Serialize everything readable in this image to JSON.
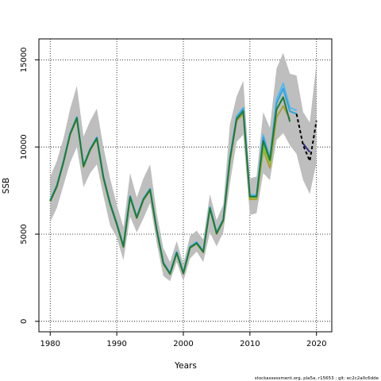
{
  "chart_data": {
    "type": "line",
    "title": "",
    "xlabel": "Years",
    "ylabel": "SSB",
    "xlim": [
      1978.3,
      2022.3
    ],
    "ylim": [
      -600,
      16200
    ],
    "x_ticks": [
      1980,
      1990,
      2000,
      2010,
      2020
    ],
    "y_ticks": [
      0,
      5000,
      10000,
      15000
    ],
    "grid": "dotted",
    "legend": "none",
    "footnote": "stockassessment.org, pla5a, r15653 ; git: ec2c2a0c6dde",
    "band": {
      "color": "#bebebe",
      "x": [
        1980,
        1981,
        1982,
        1983,
        1984,
        1985,
        1986,
        1987,
        1988,
        1989,
        1990,
        1991,
        1992,
        1993,
        1994,
        1995,
        1996,
        1997,
        1998,
        1999,
        2000,
        2001,
        2002,
        2003,
        2004,
        2005,
        2006,
        2007,
        2008,
        2009,
        2010,
        2011,
        2012,
        2013,
        2014,
        2015,
        2016,
        2017,
        2018,
        2019,
        2020
      ],
      "upper": [
        8300,
        9200,
        10500,
        12200,
        13500,
        10600,
        11500,
        12200,
        10000,
        8200,
        6700,
        5400,
        8500,
        7100,
        8200,
        9000,
        6200,
        4200,
        3400,
        4600,
        3300,
        4900,
        5200,
        4700,
        7300,
        5800,
        6700,
        11300,
        12900,
        13800,
        8200,
        8300,
        12000,
        11100,
        14500,
        15400,
        14200,
        14100,
        12000,
        11400,
        14800
      ],
      "lower": [
        5700,
        6500,
        7800,
        9100,
        10000,
        7700,
        8500,
        9000,
        7200,
        5500,
        4800,
        3500,
        6000,
        5100,
        5900,
        6800,
        4500,
        2600,
        2300,
        3400,
        2300,
        3600,
        4000,
        3400,
        5100,
        4300,
        5100,
        7900,
        10300,
        10700,
        6100,
        6200,
        8500,
        8100,
        10400,
        10800,
        10100,
        9600,
        8100,
        7300,
        9100
      ]
    },
    "series": [
      {
        "color": "#ae9f32",
        "values": [
          6870,
          7700,
          9100,
          10700,
          11600,
          8850,
          9800,
          10450,
          8200,
          6700,
          5550,
          4250,
          7100,
          5900,
          6950,
          7500,
          5200,
          3300,
          2700,
          3900,
          2730,
          4200,
          4450,
          3950,
          6450,
          5000,
          5750,
          9200,
          11500,
          11900,
          7000,
          7000,
          9850,
          8800,
          11700,
          12350,
          11600
        ]
      },
      {
        "color": "#87c832",
        "values": [
          6920,
          7760,
          9160,
          10760,
          11680,
          8910,
          9870,
          10520,
          8260,
          6760,
          5600,
          4300,
          7160,
          5960,
          7010,
          7570,
          5260,
          3340,
          2740,
          3950,
          2770,
          4250,
          4500,
          4000,
          6520,
          5060,
          5820,
          9340,
          11650,
          12100,
          7100,
          7100,
          10050,
          9050,
          12150,
          12900
        ]
      },
      {
        "color": "#52b9f2",
        "values": [
          6960,
          7800,
          9200,
          10800,
          11720,
          8950,
          9910,
          10560,
          8300,
          6800,
          5640,
          4340,
          7200,
          6000,
          7050,
          7610,
          5300,
          3380,
          2780,
          3990,
          2810,
          4290,
          4540,
          4040,
          6560,
          5100,
          5860,
          9400,
          11760,
          12250,
          7250,
          7250,
          10700,
          9400,
          12700,
          13650,
          12250,
          12100
        ]
      },
      {
        "color": "#2fa3dd",
        "values": [
          6940,
          7780,
          9180,
          10780,
          11700,
          8930,
          9890,
          10540,
          8280,
          6780,
          5620,
          4320,
          7180,
          5980,
          7030,
          7590,
          5280,
          3360,
          2760,
          3970,
          2790,
          4270,
          4520,
          4020,
          6540,
          5080,
          5840,
          9360,
          11680,
          12180,
          7180,
          7180,
          10550,
          9250,
          12500,
          13350,
          12050,
          11900
        ]
      },
      {
        "color": "#1f7a3a",
        "values": [
          6900,
          7740,
          9140,
          10740,
          11660,
          8890,
          9850,
          10500,
          8240,
          6740,
          5580,
          4280,
          7140,
          5940,
          6990,
          7550,
          5240,
          3320,
          2720,
          3930,
          2750,
          4230,
          4480,
          3980,
          6500,
          5040,
          5800,
          9300,
          11600,
          12050,
          7150,
          7150,
          10350,
          9250,
          12150,
          12850,
          11450
        ]
      },
      {
        "color": "#2c2f80",
        "x_start": 2018,
        "values": [
          10200,
          9700
        ]
      },
      {
        "color": "#000000",
        "dashed": true,
        "x_start": 2017,
        "values": [
          11900,
          10100,
          9200,
          11500
        ]
      }
    ]
  }
}
